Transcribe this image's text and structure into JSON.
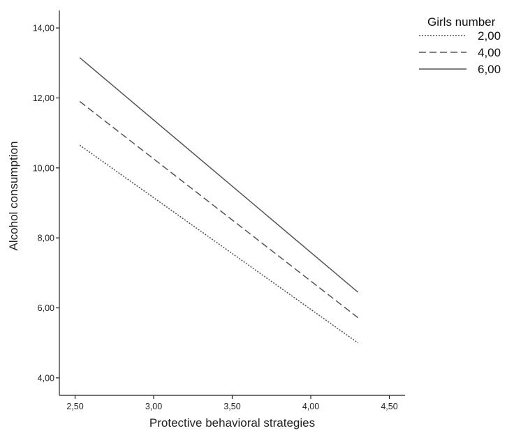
{
  "chart_data": {
    "type": "line",
    "xlabel": "Protective behavioral strategies",
    "ylabel": "Alcohol consumption",
    "xlim": [
      2.4,
      4.6
    ],
    "ylim": [
      3.5,
      14.5
    ],
    "x_ticks": [
      {
        "value": 2.5,
        "label": "2,50"
      },
      {
        "value": 3.0,
        "label": "3,00"
      },
      {
        "value": 3.5,
        "label": "3,50"
      },
      {
        "value": 4.0,
        "label": "4,00"
      },
      {
        "value": 4.5,
        "label": "4,50"
      }
    ],
    "y_ticks": [
      {
        "value": 4,
        "label": "4,00"
      },
      {
        "value": 6,
        "label": "6,00"
      },
      {
        "value": 8,
        "label": "8,00"
      },
      {
        "value": 10,
        "label": "10,00"
      },
      {
        "value": 12,
        "label": "12,00"
      },
      {
        "value": 14,
        "label": "14,00"
      }
    ],
    "legend": {
      "title": "Girls number",
      "position": "top-right"
    },
    "grid": false,
    "series": [
      {
        "name": "2,00",
        "style": "dotted",
        "color": "#555555",
        "points": [
          [
            2.53,
            10.65
          ],
          [
            4.3,
            5.0
          ]
        ]
      },
      {
        "name": "4,00",
        "style": "dashed",
        "color": "#555555",
        "points": [
          [
            2.53,
            11.9
          ],
          [
            4.3,
            5.72
          ]
        ]
      },
      {
        "name": "6,00",
        "style": "solid",
        "color": "#555555",
        "points": [
          [
            2.53,
            13.15
          ],
          [
            4.3,
            6.45
          ]
        ]
      }
    ]
  }
}
